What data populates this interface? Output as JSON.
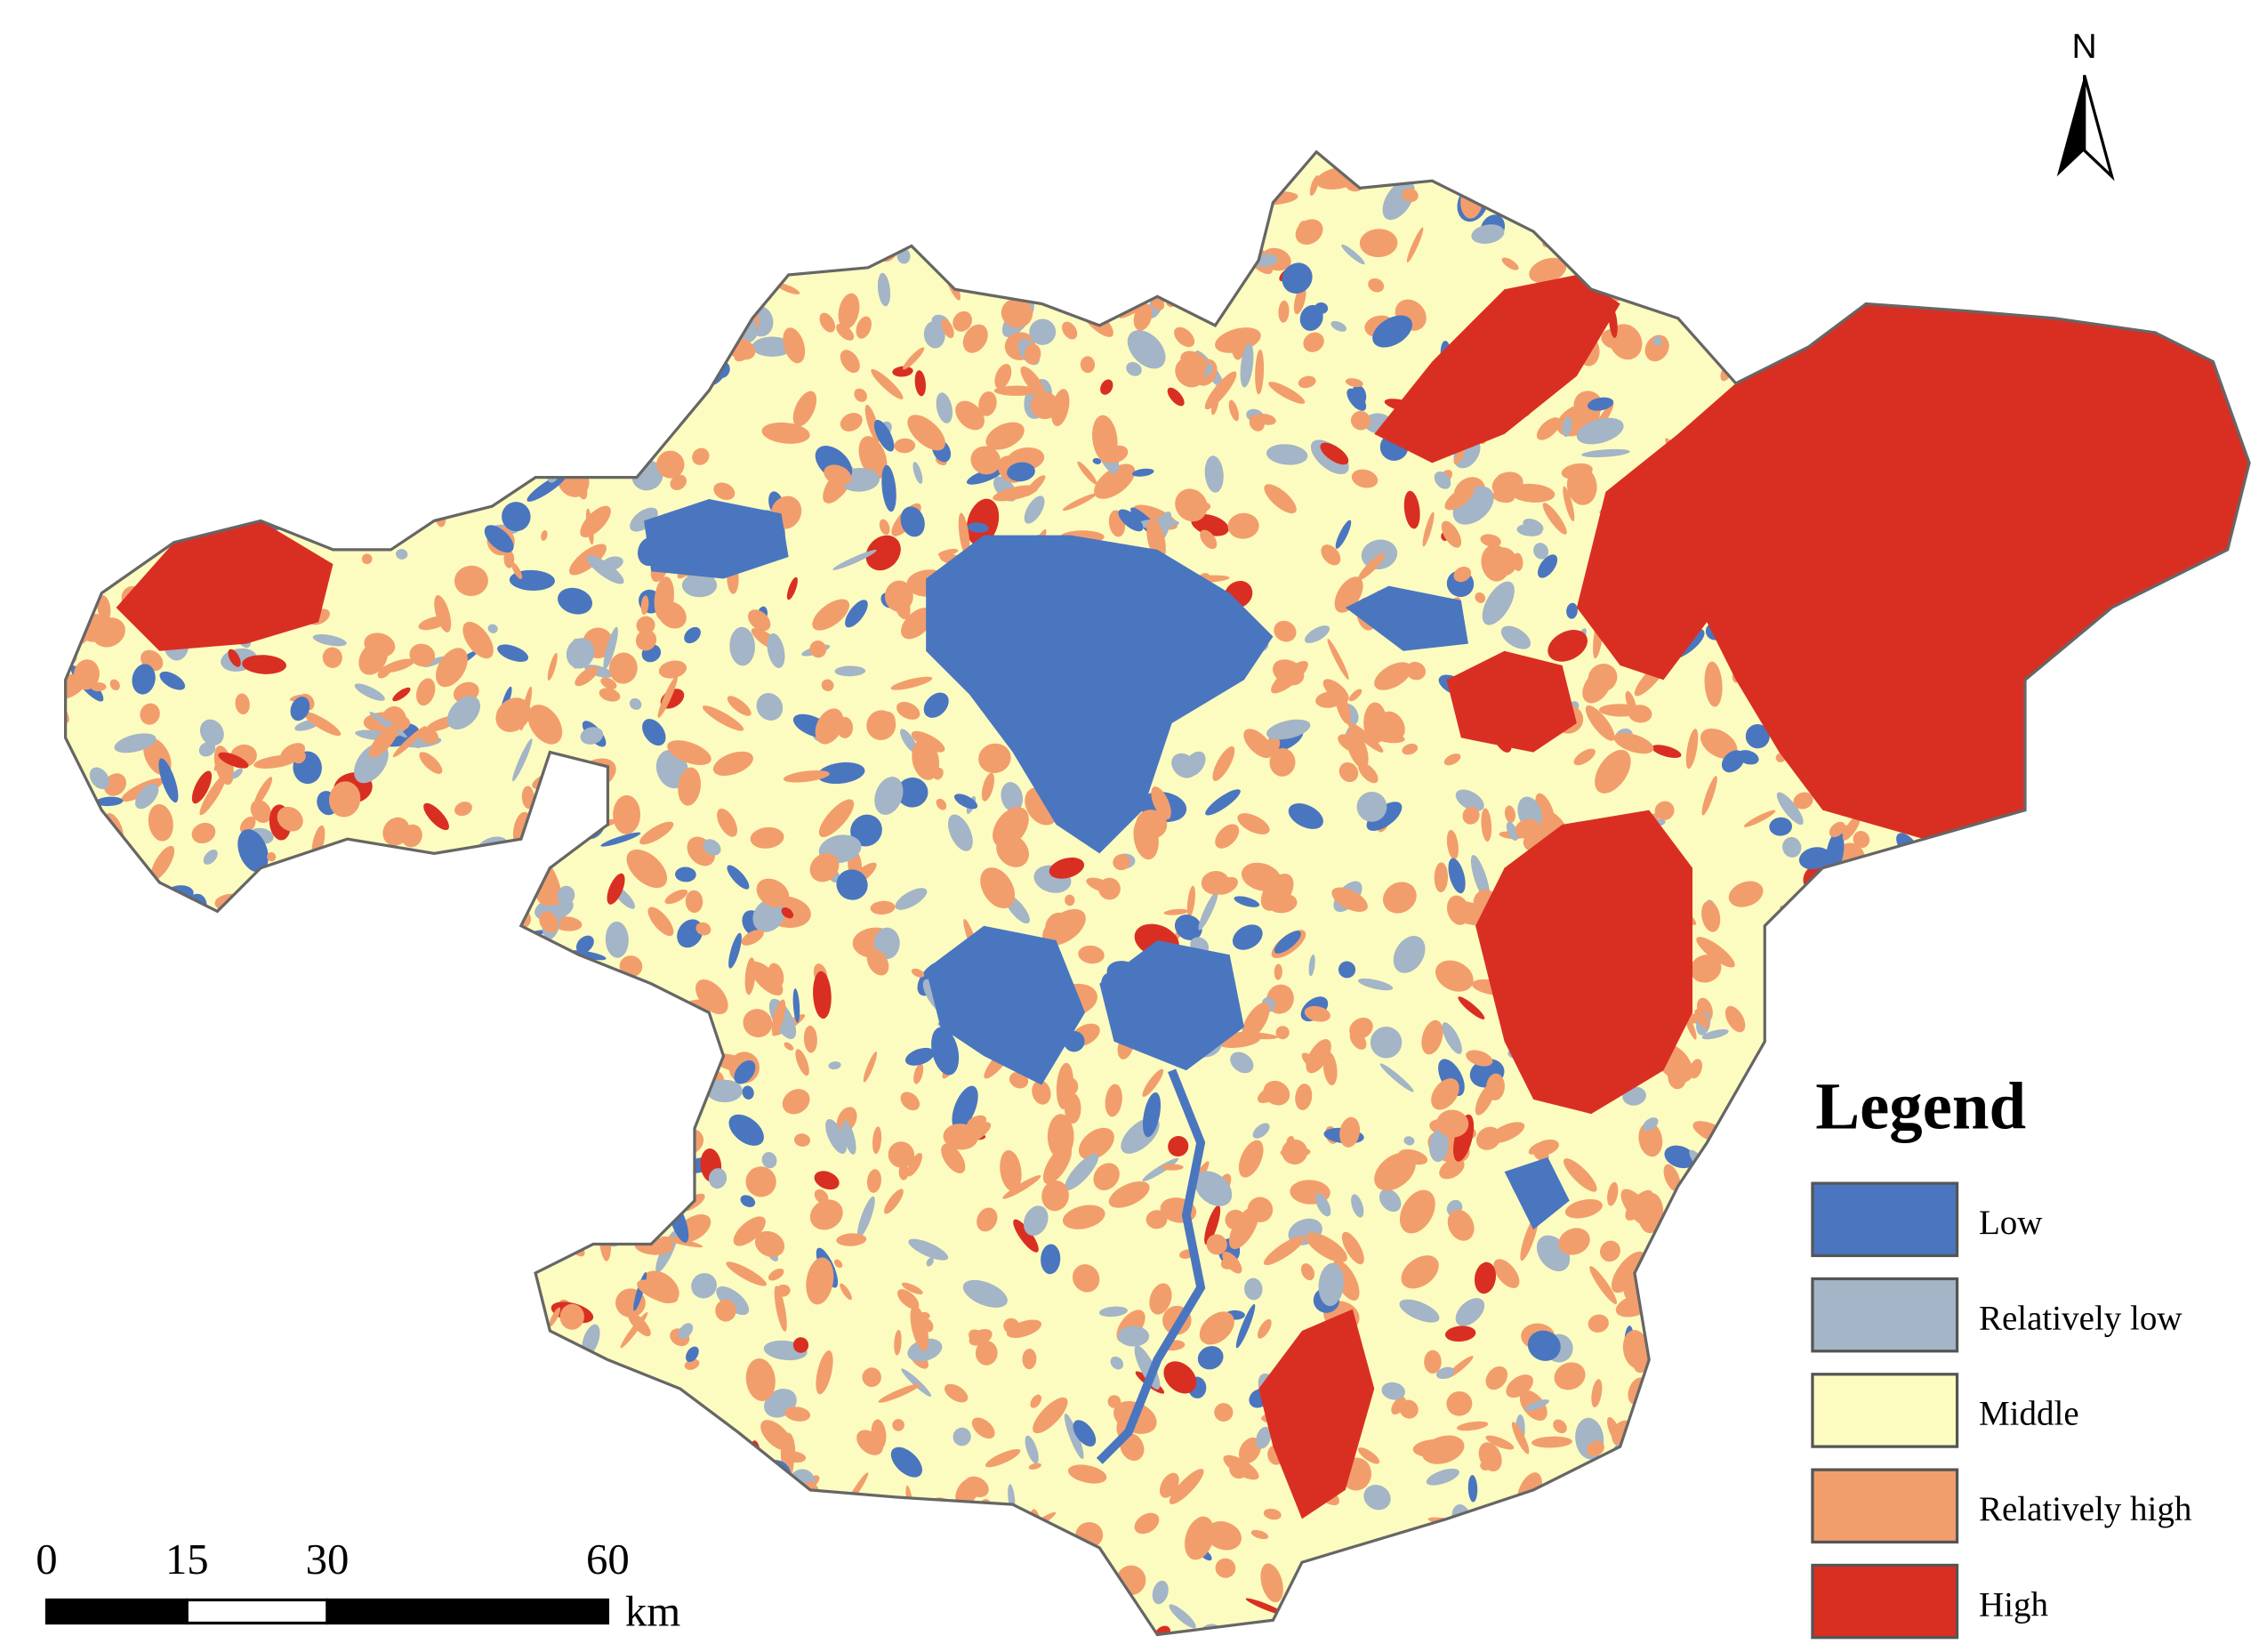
{
  "map": {
    "north_label": "N"
  },
  "legend": {
    "title": "Legend",
    "items": [
      {
        "label": "Low",
        "color": "#4a76c0"
      },
      {
        "label": "Relatively low",
        "color": "#a3b5c6"
      },
      {
        "label": "Middle",
        "color": "#fdfcc0"
      },
      {
        "label": "Relatively high",
        "color": "#f29e6c"
      },
      {
        "label": "High",
        "color": "#d92f22"
      }
    ]
  },
  "scale_bar": {
    "ticks": [
      0,
      15,
      30,
      60
    ],
    "unit": "km"
  }
}
